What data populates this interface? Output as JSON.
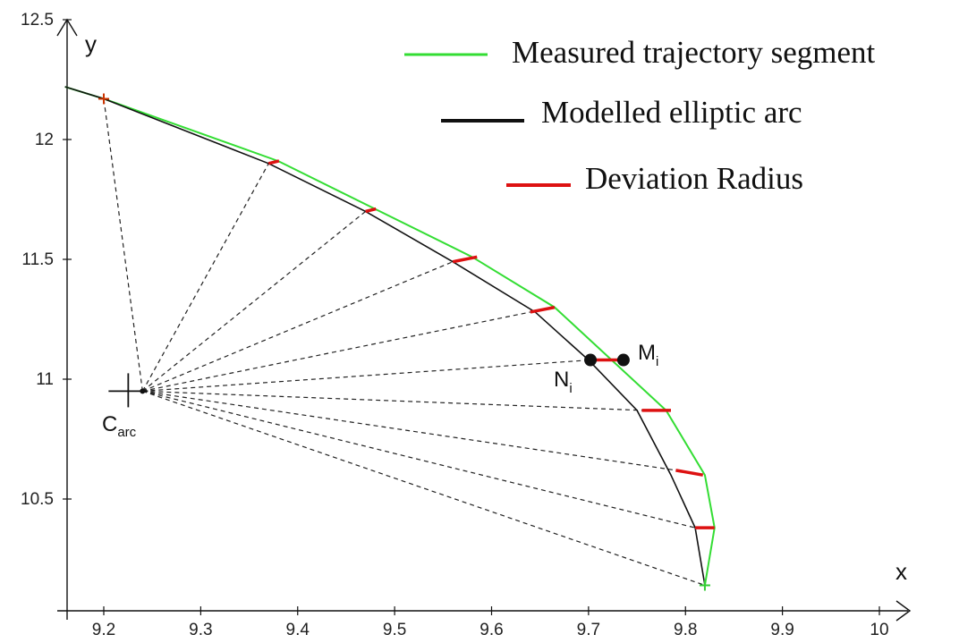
{
  "chart_data": {
    "type": "line",
    "xlabel": "x",
    "ylabel": "y",
    "xlim": [
      9.16,
      10.0
    ],
    "ylim": [
      10.12,
      12.5
    ],
    "x_ticks": [
      "9.2",
      "9.3",
      "9.4",
      "9.5",
      "9.6",
      "9.7",
      "9.8",
      "9.9",
      "10"
    ],
    "y_ticks": [
      "10.5",
      "11",
      "11.5",
      "12",
      "12.5"
    ],
    "grid": false,
    "legend_position": "top-right",
    "colors": {
      "measured": "#33dd33",
      "modelled": "#111111",
      "deviation": "#dd1111",
      "construction": "#222222"
    },
    "legend": [
      {
        "label": "Measured trajectory segment",
        "color": "#33dd33"
      },
      {
        "label": "Modelled elliptic arc",
        "color": "#111111"
      },
      {
        "label": "Deviation Radius",
        "color": "#dd1111"
      }
    ],
    "center": {
      "label": "C",
      "subscript": "arc",
      "x": 9.24,
      "y": 10.95
    },
    "series": [
      {
        "name": "Measured trajectory segment",
        "x": [
          9.16,
          9.2,
          9.38,
          9.48,
          9.58,
          9.665,
          9.78,
          9.82,
          9.83,
          9.82
        ],
        "y": [
          12.22,
          12.17,
          11.91,
          11.71,
          11.51,
          11.3,
          10.87,
          10.6,
          10.38,
          10.14
        ]
      },
      {
        "name": "Modelled elliptic arc",
        "x": [
          9.16,
          9.2,
          9.37,
          9.47,
          9.56,
          9.645,
          9.7,
          9.75,
          9.785,
          9.81,
          9.82
        ],
        "y": [
          12.22,
          12.17,
          11.9,
          11.7,
          11.49,
          11.28,
          11.08,
          10.87,
          10.6,
          10.38,
          10.14
        ]
      }
    ],
    "deviations": [
      {
        "x1": 9.2,
        "y1": 12.17,
        "x2": 9.2,
        "y2": 12.17
      },
      {
        "x1": 9.37,
        "y1": 11.9,
        "x2": 9.38,
        "y2": 11.91
      },
      {
        "x1": 9.47,
        "y1": 11.7,
        "x2": 9.48,
        "y2": 11.71
      },
      {
        "x1": 9.56,
        "y1": 11.49,
        "x2": 9.585,
        "y2": 11.51
      },
      {
        "x1": 9.64,
        "y1": 11.28,
        "x2": 9.665,
        "y2": 11.3
      },
      {
        "x1": 9.702,
        "y1": 11.08,
        "x2": 9.736,
        "y2": 11.08
      },
      {
        "x1": 9.755,
        "y1": 10.87,
        "x2": 9.785,
        "y2": 10.87
      },
      {
        "x1": 9.79,
        "y1": 10.62,
        "x2": 9.818,
        "y2": 10.6
      },
      {
        "x1": 9.81,
        "y1": 10.38,
        "x2": 9.83,
        "y2": 10.38
      },
      {
        "x1": 9.82,
        "y1": 10.14,
        "x2": 9.82,
        "y2": 10.14
      }
    ],
    "points": [
      {
        "label": "N",
        "subscript": "i",
        "x": 9.702,
        "y": 11.08
      },
      {
        "label": "M",
        "subscript": "i",
        "x": 9.736,
        "y": 11.08
      }
    ]
  }
}
